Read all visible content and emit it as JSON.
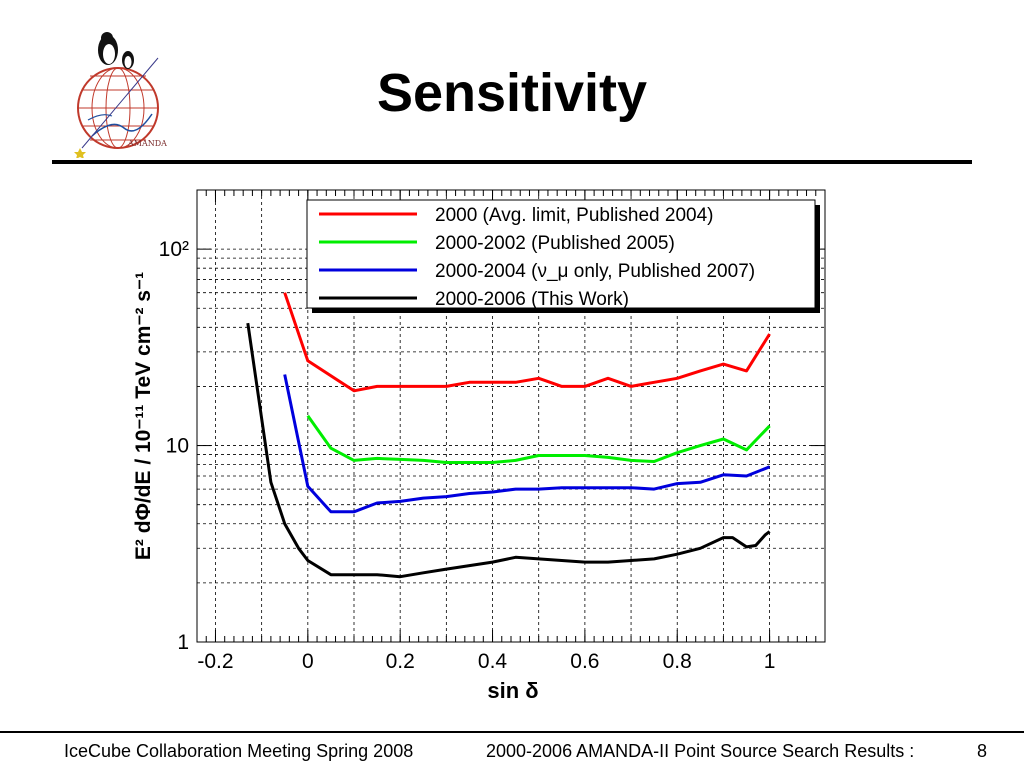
{
  "slide": {
    "title": "Sensitivity",
    "logo_text": "AMANDA"
  },
  "footer": {
    "left": "IceCube Collaboration Meeting Spring 2008",
    "right": "2000-2006 AMANDA-II Point Source Search Results :",
    "page": "8"
  },
  "chart_data": {
    "type": "line",
    "xlabel": "sin δ",
    "ylabel": "E² dΦ/dE / 10⁻¹¹ TeV cm⁻² s⁻¹",
    "xlim": [
      -0.24,
      1.12
    ],
    "ylim": [
      1,
      200
    ],
    "yscale": "log",
    "xticks": [
      -0.2,
      0,
      0.2,
      0.4,
      0.6,
      0.8,
      1
    ],
    "xtick_labels": [
      "-0.2",
      "0",
      "0.2",
      "0.4",
      "0.6",
      "0.8",
      "1"
    ],
    "yticks": [
      1,
      10,
      100
    ],
    "ytick_labels": [
      "1",
      "10",
      "10²"
    ],
    "grid": true,
    "legend_position": "top-right",
    "series": [
      {
        "name": "2000 (Avg. limit, Published 2004)",
        "color": "#ff0000",
        "x": [
          -0.05,
          0,
          0.1,
          0.15,
          0.2,
          0.3,
          0.35,
          0.4,
          0.45,
          0.5,
          0.55,
          0.6,
          0.65,
          0.7,
          0.75,
          0.8,
          0.85,
          0.9,
          0.95,
          1.0
        ],
        "y": [
          60,
          27,
          19,
          20,
          20,
          20,
          21,
          21,
          21,
          22,
          20,
          20,
          22,
          20,
          21,
          22,
          24,
          26,
          24,
          37
        ]
      },
      {
        "name": "2000-2002 (Published 2005)",
        "color": "#00ee00",
        "x": [
          0,
          0.05,
          0.1,
          0.15,
          0.2,
          0.25,
          0.3,
          0.35,
          0.4,
          0.45,
          0.5,
          0.55,
          0.6,
          0.65,
          0.7,
          0.75,
          0.8,
          0.85,
          0.9,
          0.95,
          1.0
        ],
        "y": [
          14.2,
          9.7,
          8.4,
          8.6,
          8.5,
          8.4,
          8.2,
          8.2,
          8.2,
          8.4,
          8.9,
          8.9,
          8.9,
          8.7,
          8.4,
          8.3,
          9.2,
          10,
          10.8,
          9.5,
          12.6
        ]
      },
      {
        "name": "2000-2004 (ν_μ only, Published 2007)",
        "color": "#0000dd",
        "x": [
          -0.05,
          0,
          0.05,
          0.1,
          0.15,
          0.2,
          0.25,
          0.3,
          0.35,
          0.4,
          0.45,
          0.5,
          0.55,
          0.6,
          0.65,
          0.7,
          0.75,
          0.8,
          0.85,
          0.9,
          0.95,
          1.0
        ],
        "y": [
          23,
          6.2,
          4.6,
          4.6,
          5.1,
          5.2,
          5.4,
          5.5,
          5.7,
          5.8,
          6.0,
          6.0,
          6.1,
          6.1,
          6.1,
          6.1,
          6.0,
          6.4,
          6.5,
          7.1,
          7.0,
          7.8
        ]
      },
      {
        "name": "2000-2006 (This Work)",
        "color": "#000000",
        "x": [
          -0.13,
          -0.08,
          -0.05,
          -0.02,
          0,
          0.05,
          0.1,
          0.15,
          0.2,
          0.25,
          0.3,
          0.35,
          0.4,
          0.45,
          0.5,
          0.55,
          0.6,
          0.65,
          0.7,
          0.75,
          0.8,
          0.85,
          0.9,
          0.92,
          0.95,
          0.97,
          0.99,
          1.0
        ],
        "y": [
          42,
          6.5,
          4.0,
          3.0,
          2.6,
          2.2,
          2.2,
          2.2,
          2.15,
          2.25,
          2.35,
          2.45,
          2.55,
          2.7,
          2.65,
          2.6,
          2.55,
          2.55,
          2.6,
          2.65,
          2.8,
          3.0,
          3.4,
          3.4,
          3.05,
          3.1,
          3.5,
          3.65
        ]
      }
    ]
  }
}
